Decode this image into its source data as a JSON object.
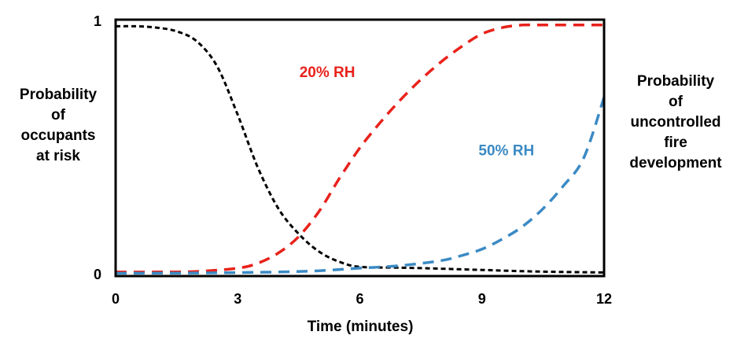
{
  "chart_data": {
    "type": "line",
    "title": "",
    "xlabel": "Time (minutes)",
    "ylabel_left": [
      "Probability",
      "of",
      "occupants",
      "at risk"
    ],
    "ylabel_right": [
      "Probability",
      "of",
      "uncontrolled",
      "fire",
      "development"
    ],
    "xlim": [
      0,
      12
    ],
    "ylim": [
      0,
      1
    ],
    "x_ticks": [
      0,
      3,
      6,
      9,
      12
    ],
    "y_ticks": [
      0,
      1
    ],
    "grid": false,
    "series": [
      {
        "name": "",
        "color": "#000000",
        "dash": "fine",
        "x": [
          0,
          0.5,
          1,
          1.5,
          2,
          2.5,
          3,
          3.5,
          4,
          4.5,
          5,
          5.5,
          6,
          7,
          8,
          9,
          10,
          11,
          12
        ],
        "y": [
          0.98,
          0.98,
          0.975,
          0.96,
          0.92,
          0.82,
          0.63,
          0.42,
          0.26,
          0.16,
          0.09,
          0.05,
          0.03,
          0.027,
          0.023,
          0.018,
          0.013,
          0.01,
          0.008
        ]
      },
      {
        "name": "20% RH",
        "color": "#e8221b",
        "dash": "coarse",
        "x": [
          0,
          1,
          2,
          3,
          3.5,
          4,
          4.5,
          5,
          5.5,
          6,
          6.5,
          7,
          7.5,
          8,
          8.5,
          9,
          9.5,
          10,
          10.5,
          11,
          12
        ],
        "y": [
          0.01,
          0.01,
          0.012,
          0.025,
          0.045,
          0.085,
          0.15,
          0.25,
          0.38,
          0.5,
          0.6,
          0.69,
          0.77,
          0.84,
          0.9,
          0.95,
          0.975,
          0.985,
          0.985,
          0.985,
          0.985
        ]
      },
      {
        "name": "50% RH",
        "color": "#3b8ac4",
        "dash": "coarse",
        "x": [
          0,
          2,
          4,
          5,
          6,
          7,
          8,
          8.5,
          9,
          9.5,
          10,
          10.5,
          11,
          11.5,
          12
        ],
        "y": [
          0.005,
          0.006,
          0.01,
          0.015,
          0.025,
          0.035,
          0.055,
          0.075,
          0.1,
          0.14,
          0.19,
          0.26,
          0.35,
          0.46,
          0.7
        ]
      }
    ],
    "annotations": [
      {
        "text": "20% RH",
        "color": "#e8221b",
        "x": 5.2,
        "y": 0.78
      },
      {
        "text": "50% RH",
        "color": "#3b8ac4",
        "x": 9.6,
        "y": 0.47
      }
    ]
  }
}
